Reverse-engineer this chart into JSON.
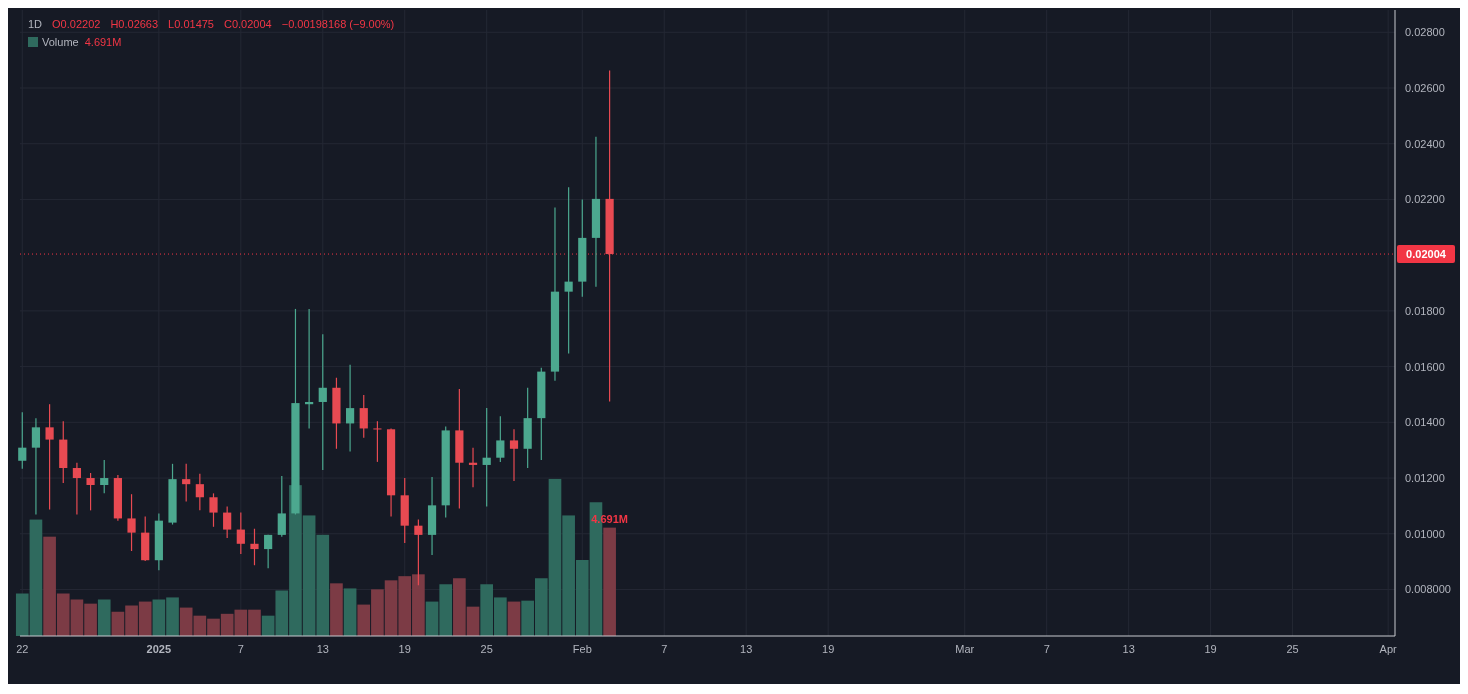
{
  "chart_data": {
    "type": "candlestick",
    "title": "1D",
    "annotations": [
      "O0.02202",
      "H0.02663",
      "L0.01475",
      "C0.02004",
      "−0.00198168 (−9.00%)"
    ],
    "x": [
      "2024-12-22",
      "2024-12-23",
      "2024-12-24",
      "2024-12-25",
      "2024-12-26",
      "2024-12-27",
      "2024-12-28",
      "2024-12-29",
      "2024-12-30",
      "2024-12-31",
      "2025-01-01",
      "2025-01-02",
      "2025-01-03",
      "2025-01-04",
      "2025-01-05",
      "2025-01-06",
      "2025-01-07",
      "2025-01-08",
      "2025-01-09",
      "2025-01-10",
      "2025-01-11",
      "2025-01-12",
      "2025-01-13",
      "2025-01-14",
      "2025-01-15",
      "2025-01-16",
      "2025-01-17",
      "2025-01-18",
      "2025-01-19",
      "2025-01-20",
      "2025-01-21",
      "2025-01-22",
      "2025-01-23",
      "2025-01-24",
      "2025-01-25",
      "2025-01-26",
      "2025-01-27",
      "2025-01-28",
      "2025-01-29",
      "2025-01-30",
      "2025-01-31",
      "2025-02-01",
      "2025-02-02",
      "2025-02-03"
    ],
    "ohlc": [
      [
        0.01262,
        0.01436,
        0.01233,
        0.01309
      ],
      [
        0.01309,
        0.01415,
        0.01069,
        0.01382
      ],
      [
        0.01382,
        0.01465,
        0.01087,
        0.01338
      ],
      [
        0.01338,
        0.01404,
        0.01182,
        0.01236
      ],
      [
        0.01236,
        0.01255,
        0.01069,
        0.012
      ],
      [
        0.012,
        0.01218,
        0.01084,
        0.01175
      ],
      [
        0.01175,
        0.01265,
        0.01145,
        0.012
      ],
      [
        0.012,
        0.01211,
        0.01047,
        0.01055
      ],
      [
        0.01055,
        0.01142,
        0.00938,
        0.01004
      ],
      [
        0.01004,
        0.01062,
        0.00902,
        0.00905
      ],
      [
        0.00905,
        0.01073,
        0.00869,
        0.01047
      ],
      [
        0.0104,
        0.01251,
        0.01033,
        0.01196
      ],
      [
        0.01196,
        0.01251,
        0.01116,
        0.01178
      ],
      [
        0.01178,
        0.01215,
        0.01084,
        0.01131
      ],
      [
        0.01131,
        0.01145,
        0.01025,
        0.01076
      ],
      [
        0.01076,
        0.01098,
        0.00985,
        0.01015
      ],
      [
        0.01015,
        0.01076,
        0.00927,
        0.00964
      ],
      [
        0.00964,
        0.01018,
        0.00887,
        0.00945
      ],
      [
        0.00945,
        0.00996,
        0.00876,
        0.00996
      ],
      [
        0.00996,
        0.01207,
        0.00989,
        0.01073
      ],
      [
        0.01073,
        0.01807,
        0.01069,
        0.01469
      ],
      [
        0.01465,
        0.01807,
        0.01378,
        0.01473
      ],
      [
        0.01473,
        0.01716,
        0.01229,
        0.01524
      ],
      [
        0.01524,
        0.0156,
        0.01305,
        0.01396
      ],
      [
        0.01396,
        0.01607,
        0.01295,
        0.01451
      ],
      [
        0.01451,
        0.01498,
        0.01345,
        0.01378
      ],
      [
        0.01378,
        0.01404,
        0.01258,
        0.01375
      ],
      [
        0.01375,
        0.01378,
        0.01062,
        0.01138
      ],
      [
        0.01138,
        0.012,
        0.00967,
        0.01029
      ],
      [
        0.01029,
        0.01051,
        0.00815,
        0.00996
      ],
      [
        0.00996,
        0.01204,
        0.00924,
        0.01102
      ],
      [
        0.01102,
        0.01385,
        0.01058,
        0.01371
      ],
      [
        0.01371,
        0.0152,
        0.01091,
        0.01255
      ],
      [
        0.01255,
        0.01309,
        0.01167,
        0.01247
      ],
      [
        0.01247,
        0.01451,
        0.01098,
        0.01273
      ],
      [
        0.01273,
        0.01422,
        0.01258,
        0.01335
      ],
      [
        0.01335,
        0.01375,
        0.01189,
        0.01305
      ],
      [
        0.01305,
        0.01524,
        0.01236,
        0.01415
      ],
      [
        0.01415,
        0.01596,
        0.01265,
        0.01582
      ],
      [
        0.01582,
        0.02171,
        0.01549,
        0.01869
      ],
      [
        0.01869,
        0.02244,
        0.01647,
        0.01905
      ],
      [
        0.01905,
        0.022,
        0.01851,
        0.02062
      ],
      [
        0.02062,
        0.02425,
        0.01887,
        0.02202
      ],
      [
        0.02202,
        0.02663,
        0.01475,
        0.02004
      ]
    ],
    "colors": [
      "#4ca88f",
      "#4ca88f",
      "#e84a52",
      "#e84a52",
      "#e84a52",
      "#e84a52",
      "#4ca88f",
      "#e84a52",
      "#e84a52",
      "#e84a52",
      "#4ca88f",
      "#4ca88f",
      "#e84a52",
      "#e84a52",
      "#e84a52",
      "#e84a52",
      "#e84a52",
      "#e84a52",
      "#4ca88f",
      "#4ca88f",
      "#4ca88f",
      "#4ca88f",
      "#4ca88f",
      "#e84a52",
      "#4ca88f",
      "#e84a52",
      "#e84a52",
      "#e84a52",
      "#e84a52",
      "#e84a52",
      "#4ca88f",
      "#4ca88f",
      "#e84a52",
      "#e84a52",
      "#4ca88f",
      "#4ca88f",
      "#e84a52",
      "#4ca88f",
      "#4ca88f",
      "#4ca88f",
      "#4ca88f",
      "#4ca88f",
      "#4ca88f",
      "#e84a52"
    ],
    "series": [
      {
        "name": "Volume",
        "type": "bar",
        "axis": "y2",
        "values": [
          1.84,
          5.04,
          4.3,
          1.84,
          1.58,
          1.4,
          1.58,
          1.05,
          1.32,
          1.49,
          1.58,
          1.67,
          1.23,
          0.88,
          0.75,
          0.96,
          1.14,
          1.14,
          0.88,
          1.97,
          6.53,
          5.22,
          4.38,
          2.28,
          2.06,
          1.36,
          2.02,
          2.41,
          2.59,
          2.67,
          1.49,
          2.24,
          2.5,
          1.27,
          2.24,
          1.67,
          1.49,
          1.53,
          2.5,
          6.8,
          5.22,
          3.29,
          5.79,
          4.691
        ],
        "colors": [
          "#2f6a5e",
          "#2f6a5e",
          "#7c3b45",
          "#7c3b45",
          "#7c3b45",
          "#7c3b45",
          "#2f6a5e",
          "#7c3b45",
          "#7c3b45",
          "#7c3b45",
          "#2f6a5e",
          "#2f6a5e",
          "#7c3b45",
          "#7c3b45",
          "#7c3b45",
          "#7c3b45",
          "#7c3b45",
          "#7c3b45",
          "#2f6a5e",
          "#2f6a5e",
          "#2f6a5e",
          "#2f6a5e",
          "#2f6a5e",
          "#7c3b45",
          "#2f6a5e",
          "#7c3b45",
          "#7c3b45",
          "#7c3b45",
          "#7c3b45",
          "#7c3b45",
          "#2f6a5e",
          "#2f6a5e",
          "#7c3b45",
          "#7c3b45",
          "#2f6a5e",
          "#2f6a5e",
          "#7c3b45",
          "#2f6a5e",
          "#2f6a5e",
          "#2f6a5e",
          "#2f6a5e",
          "#2f6a5e",
          "#2f6a5e",
          "#7c3b45"
        ],
        "value_labels": [
          null,
          null,
          null,
          null,
          null,
          null,
          null,
          null,
          null,
          null,
          null,
          null,
          null,
          null,
          null,
          null,
          null,
          null,
          null,
          null,
          null,
          null,
          null,
          null,
          null,
          null,
          null,
          null,
          null,
          null,
          null,
          null,
          null,
          null,
          null,
          null,
          null,
          null,
          null,
          null,
          null,
          null,
          null,
          "4.691M"
        ]
      }
    ],
    "xlim": [
      "2024-12-21T20:00",
      "2025-04-01T12:00"
    ],
    "xticks": [
      {
        "value": "2024-12-22",
        "label": "22"
      },
      {
        "value": "2025-01-01",
        "label": "2025"
      },
      {
        "value": "2025-01-07",
        "label": "7"
      },
      {
        "value": "2025-01-13",
        "label": "13"
      },
      {
        "value": "2025-01-19",
        "label": "19"
      },
      {
        "value": "2025-01-25",
        "label": "25"
      },
      {
        "value": "2025-02-01",
        "label": "Feb"
      },
      {
        "value": "2025-02-07",
        "label": "7"
      },
      {
        "value": "2025-02-13",
        "label": "13"
      },
      {
        "value": "2025-02-19",
        "label": "19"
      },
      {
        "value": "2025-03-01",
        "label": "Mar"
      },
      {
        "value": "2025-03-07",
        "label": "7"
      },
      {
        "value": "2025-03-13",
        "label": "13"
      },
      {
        "value": "2025-03-19",
        "label": "19"
      },
      {
        "value": "2025-03-25",
        "label": "25"
      },
      {
        "value": "2025-04-01",
        "label": "Apr"
      }
    ],
    "ylim": [
      0.00633,
      0.0288
    ],
    "yticks": [
      {
        "value": 0.008,
        "label": "0.008000"
      },
      {
        "value": 0.01,
        "label": "0.01000"
      },
      {
        "value": 0.012,
        "label": "0.01200"
      },
      {
        "value": 0.014,
        "label": "0.01400"
      },
      {
        "value": 0.016,
        "label": "0.01600"
      },
      {
        "value": 0.018,
        "label": "0.01800"
      },
      {
        "value": 0.022,
        "label": "0.02200"
      },
      {
        "value": 0.024,
        "label": "0.02400"
      },
      {
        "value": 0.026,
        "label": "0.02600"
      },
      {
        "value": 0.028,
        "label": "0.02800"
      }
    ],
    "y2lim": [
      0,
      27.1
    ],
    "ref_lines": [
      {
        "axis": "y",
        "value": 0.02004,
        "label": "0.02004",
        "color": "#f23645",
        "line_style": "dotted"
      }
    ],
    "grid": true,
    "legend": "top left"
  }
}
